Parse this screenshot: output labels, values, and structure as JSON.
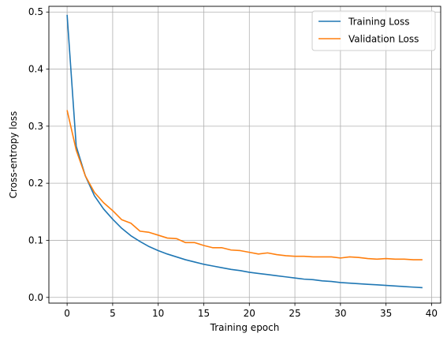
{
  "chart_data": {
    "type": "line",
    "title": "",
    "xlabel": "Training epoch",
    "ylabel": "Cross-entropy loss",
    "xlim": [
      -2,
      41
    ],
    "ylim": [
      -0.01,
      0.51
    ],
    "xticks": [
      0,
      5,
      10,
      15,
      20,
      25,
      30,
      35,
      40
    ],
    "yticks": [
      0.0,
      0.1,
      0.2,
      0.3,
      0.4,
      0.5
    ],
    "xtick_labels": [
      "0",
      "5",
      "10",
      "15",
      "20",
      "25",
      "30",
      "35",
      "40"
    ],
    "ytick_labels": [
      "0.0",
      "0.1",
      "0.2",
      "0.3",
      "0.4",
      "0.5"
    ],
    "grid": true,
    "legend_position": "top-right",
    "x": [
      0,
      1,
      2,
      3,
      4,
      5,
      6,
      7,
      8,
      9,
      10,
      11,
      12,
      13,
      14,
      15,
      16,
      17,
      18,
      19,
      20,
      21,
      22,
      23,
      24,
      25,
      26,
      27,
      28,
      29,
      30,
      31,
      32,
      33,
      34,
      35,
      36,
      37,
      38,
      39
    ],
    "series": [
      {
        "name": "Training Loss",
        "color": "#1f77b4",
        "values": [
          0.495,
          0.265,
          0.213,
          0.178,
          0.155,
          0.137,
          0.121,
          0.108,
          0.098,
          0.089,
          0.082,
          0.076,
          0.071,
          0.066,
          0.062,
          0.058,
          0.055,
          0.052,
          0.049,
          0.047,
          0.044,
          0.042,
          0.04,
          0.038,
          0.036,
          0.034,
          0.032,
          0.031,
          0.029,
          0.028,
          0.026,
          0.025,
          0.024,
          0.023,
          0.022,
          0.021,
          0.02,
          0.019,
          0.018,
          0.017
        ]
      },
      {
        "name": "Validation Loss",
        "color": "#ff7f0e",
        "values": [
          0.328,
          0.258,
          0.213,
          0.184,
          0.166,
          0.152,
          0.136,
          0.13,
          0.116,
          0.114,
          0.109,
          0.104,
          0.103,
          0.096,
          0.096,
          0.091,
          0.087,
          0.087,
          0.083,
          0.082,
          0.079,
          0.076,
          0.078,
          0.075,
          0.073,
          0.072,
          0.072,
          0.071,
          0.071,
          0.071,
          0.069,
          0.071,
          0.07,
          0.068,
          0.067,
          0.068,
          0.067,
          0.067,
          0.066,
          0.066
        ]
      }
    ]
  }
}
